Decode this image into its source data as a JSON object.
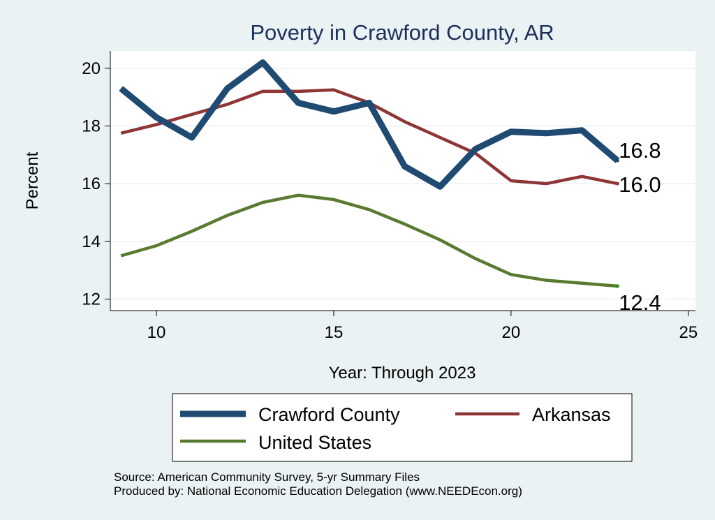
{
  "chart_data": {
    "type": "line",
    "title": "Poverty in Crawford County, AR",
    "xlabel": "Year: Through 2023",
    "ylabel": "Percent",
    "xlim": [
      8.7,
      25.2
    ],
    "ylim": [
      11.6,
      20.6
    ],
    "xticks": [
      10,
      15,
      20,
      25
    ],
    "yticks": [
      12,
      14,
      16,
      18,
      20
    ],
    "grid": true,
    "x": [
      9,
      10,
      11,
      12,
      13,
      14,
      15,
      16,
      17,
      18,
      19,
      20,
      21,
      22,
      23
    ],
    "series": [
      {
        "name": "Crawford County",
        "color": "#1f4a72",
        "values": [
          19.3,
          18.3,
          17.6,
          19.3,
          20.2,
          18.8,
          18.5,
          18.8,
          16.6,
          15.9,
          17.2,
          17.8,
          17.75,
          17.85,
          16.8
        ],
        "end_label": "16.8"
      },
      {
        "name": "Arkansas",
        "color": "#8e3636",
        "values": [
          17.75,
          18.05,
          18.4,
          18.75,
          19.2,
          19.2,
          19.25,
          18.8,
          18.15,
          17.6,
          17.05,
          16.1,
          16.0,
          16.25,
          16.0
        ],
        "end_label": "16.0"
      },
      {
        "name": "United States",
        "color": "#5a7a31",
        "values": [
          13.5,
          13.85,
          14.35,
          14.9,
          15.35,
          15.6,
          15.45,
          15.1,
          14.6,
          14.05,
          13.4,
          12.85,
          12.65,
          12.55,
          12.45
        ],
        "end_label": "12.4"
      }
    ],
    "legend_position": "bottom",
    "notes": [
      "Source: American Community Survey, 5-yr Summary Files",
      "Produced by: National Economic Education Delegation (www.NEEDEcon.org)"
    ]
  }
}
